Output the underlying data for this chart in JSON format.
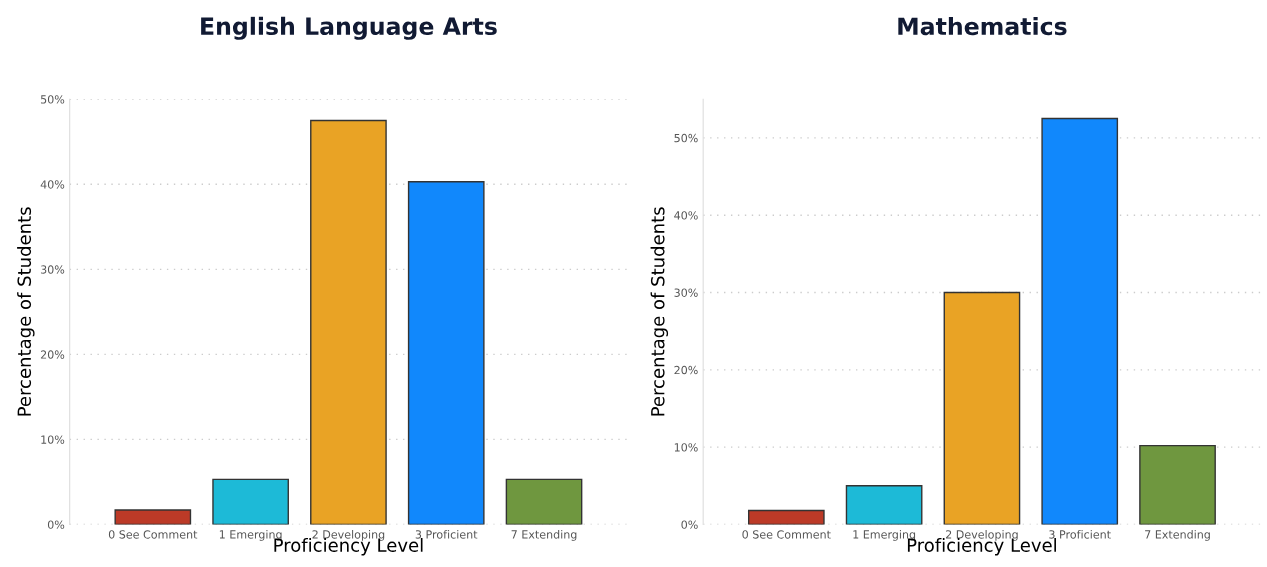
{
  "chart_data": [
    {
      "type": "bar",
      "title": "English Language Arts",
      "xlabel": "Proficiency Level",
      "ylabel": "Percentage of Students",
      "categories": [
        "0 See Comment",
        "1 Emerging",
        "2 Developing",
        "3 Proficient",
        "7 Extending"
      ],
      "values": [
        1.7,
        5.3,
        47.5,
        40.3,
        5.3
      ],
      "colors": [
        "#bc3a27",
        "#1dbad7",
        "#e9a325",
        "#1188fc",
        "#6f973f"
      ],
      "ylim": [
        0,
        50
      ],
      "yticks": [
        {
          "value": 0,
          "label": "0%"
        },
        {
          "value": 10,
          "label": "10%"
        },
        {
          "value": 20,
          "label": "20%"
        },
        {
          "value": 30,
          "label": "30%"
        },
        {
          "value": 40,
          "label": "40%"
        },
        {
          "value": 50,
          "label": "50%"
        }
      ],
      "grid": "y"
    },
    {
      "type": "bar",
      "title": "Mathematics",
      "xlabel": "Proficiency Level",
      "ylabel": "Percentage of Students",
      "categories": [
        "0 See Comment",
        "1 Emerging",
        "2 Developing",
        "3 Proficient",
        "7 Extending"
      ],
      "values": [
        1.8,
        5.0,
        30.0,
        52.5,
        10.2
      ],
      "colors": [
        "#bc3a27",
        "#1dbad7",
        "#e9a325",
        "#1188fc",
        "#6f973f"
      ],
      "ylim": [
        0,
        55
      ],
      "yticks": [
        {
          "value": 0,
          "label": "0%"
        },
        {
          "value": 10,
          "label": "10%"
        },
        {
          "value": 20,
          "label": "20%"
        },
        {
          "value": 30,
          "label": "30%"
        },
        {
          "value": 40,
          "label": "40%"
        },
        {
          "value": 50,
          "label": "50%"
        }
      ],
      "grid": "y"
    }
  ]
}
